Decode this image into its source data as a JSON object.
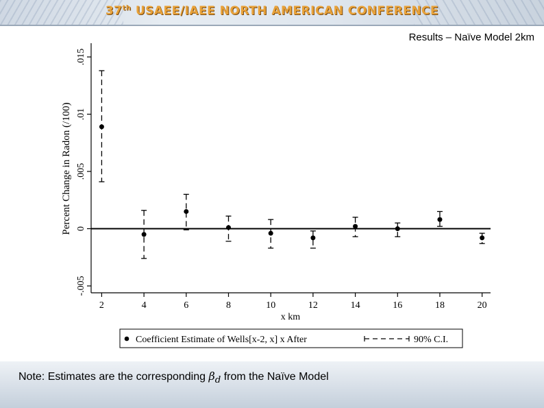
{
  "banner": {
    "title_ordinal": "37",
    "title_suffix": "th",
    "title_text": "USAEE/IAEE NORTH AMERICAN CONFERENCE"
  },
  "slide": {
    "title": "Results – Naïve Model 2km"
  },
  "footer": {
    "note_before": "Note: Estimates are the corresponding ",
    "beta_symbol": "β",
    "beta_subscript": "d",
    "note_after": " from the Naïve Model"
  },
  "chart_data": {
    "type": "scatter",
    "title": "",
    "xlabel": "x km",
    "ylabel": "Percent Change in Radon (/100)",
    "xlim": [
      1.5,
      20.4
    ],
    "ylim": [
      -0.0056,
      0.0162
    ],
    "x_ticks": [
      2,
      4,
      6,
      8,
      10,
      12,
      14,
      16,
      18,
      20
    ],
    "x_tick_labels": [
      "2",
      "4",
      "6",
      "8",
      "10",
      "12",
      "14",
      "16",
      "18",
      "20"
    ],
    "y_ticks": [
      -0.005,
      0,
      0.005,
      0.01,
      0.015
    ],
    "y_tick_labels": [
      "-.005",
      "0",
      ".005",
      ".01",
      ".015"
    ],
    "reference_line_y": 0,
    "series": [
      {
        "name": "Coefficient Estimate of Wells[x-2, x] x After",
        "x": [
          2,
          4,
          6,
          8,
          10,
          12,
          14,
          16,
          18,
          20
        ],
        "values": [
          0.0089,
          -0.0005,
          0.0015,
          0.0001,
          -0.0004,
          -0.0008,
          0.0002,
          0.0,
          0.0008,
          -0.0008
        ]
      },
      {
        "name": "90% C.I.",
        "x": [
          2,
          4,
          6,
          8,
          10,
          12,
          14,
          16,
          18,
          20
        ],
        "lower": [
          0.0041,
          -0.0026,
          -0.0001,
          -0.0011,
          -0.0017,
          -0.0017,
          -0.0007,
          -0.0007,
          0.0002,
          -0.0013
        ],
        "upper": [
          0.0138,
          0.0016,
          0.003,
          0.0011,
          0.0008,
          -0.0002,
          0.001,
          0.0005,
          0.0015,
          -0.0004
        ]
      }
    ],
    "legend": {
      "position": "bottom",
      "point_label": "Coefficient Estimate of Wells[x-2, x] x After",
      "ci_label": "90% C.I."
    }
  }
}
